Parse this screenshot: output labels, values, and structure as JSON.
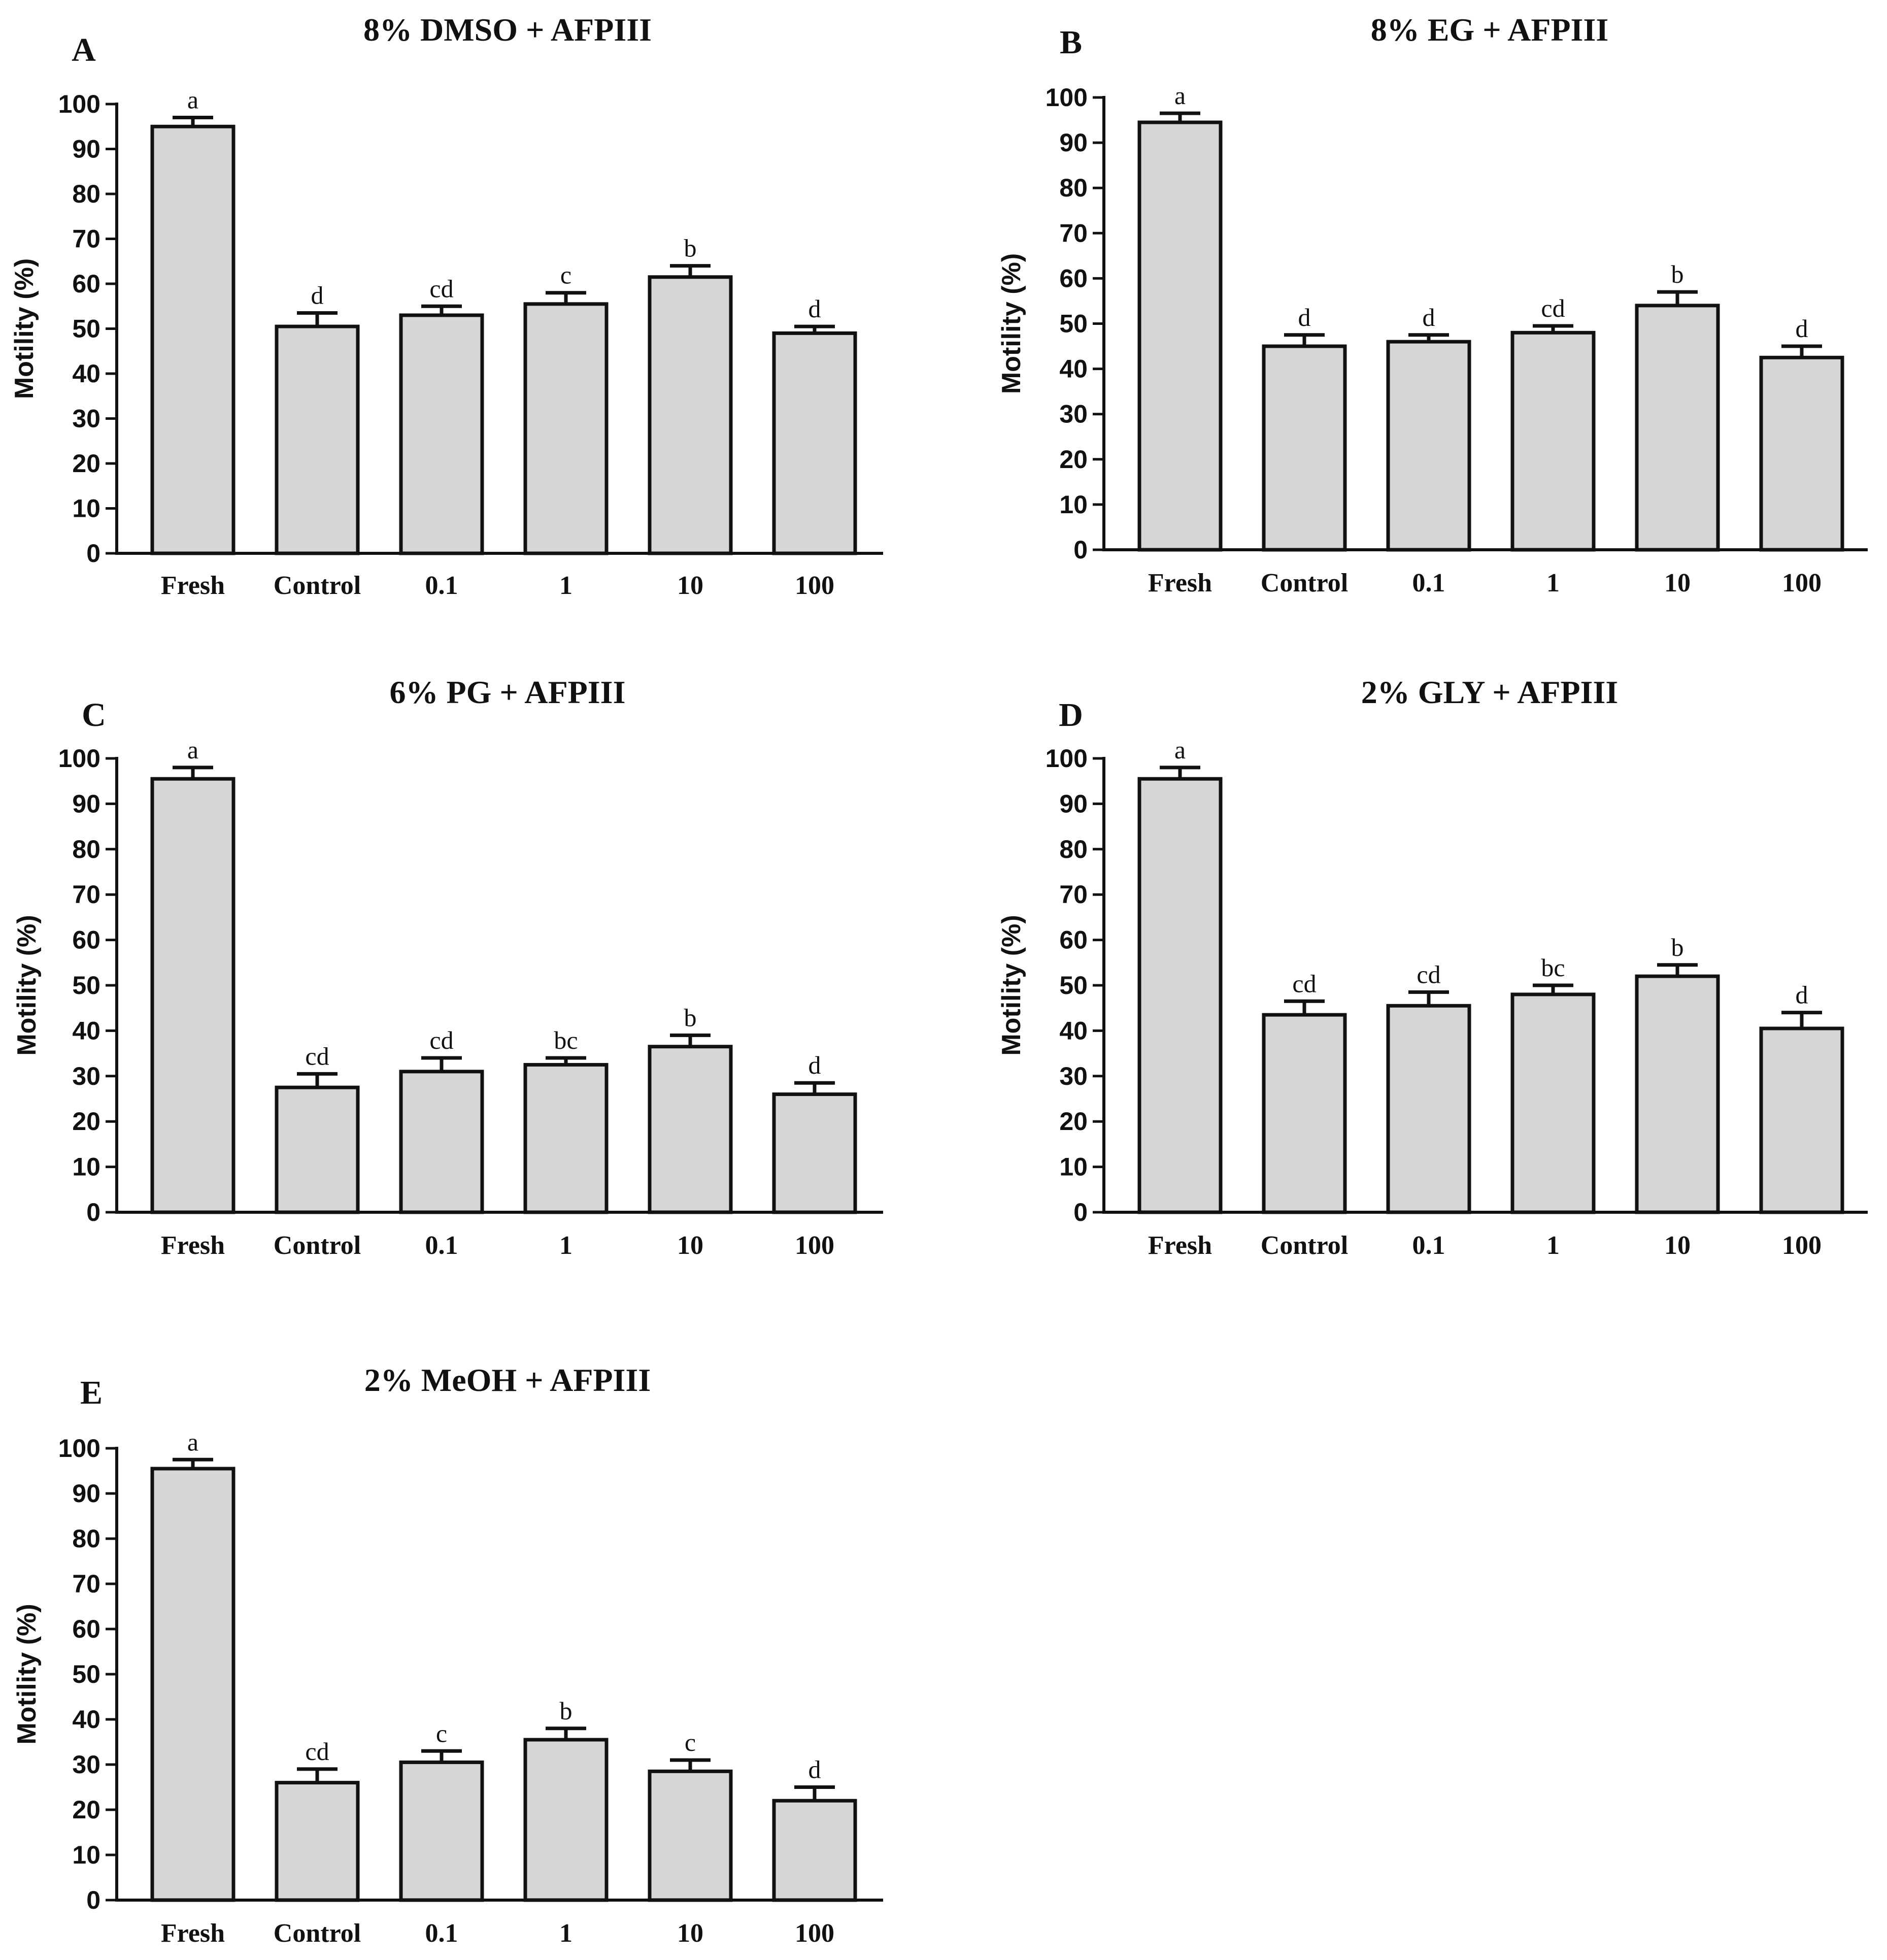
{
  "chart_data": [
    {
      "type": "bar",
      "panel": "A",
      "title": "8% DMSO + AFPIII",
      "ylabel": "Motility (%)",
      "xlabel": "",
      "ylim": [
        0,
        100
      ],
      "yticks": [
        0,
        10,
        20,
        30,
        40,
        50,
        60,
        70,
        80,
        90,
        100
      ],
      "categories": [
        "Fresh",
        "Control",
        "0.1",
        "1",
        "10",
        "100"
      ],
      "values": [
        95,
        50.5,
        53,
        55.5,
        61.5,
        49
      ],
      "errors": [
        2,
        3,
        2,
        2.5,
        2.5,
        1.5
      ],
      "significance": [
        "a",
        "d",
        "cd",
        "c",
        "b",
        "d"
      ]
    },
    {
      "type": "bar",
      "panel": "B",
      "title": "8% EG + AFPIII",
      "ylabel": "Motility (%)",
      "xlabel": "",
      "ylim": [
        0,
        100
      ],
      "yticks": [
        0,
        10,
        20,
        30,
        40,
        50,
        60,
        70,
        80,
        90,
        100
      ],
      "categories": [
        "Fresh",
        "Control",
        "0.1",
        "1",
        "10",
        "100"
      ],
      "values": [
        94.5,
        45,
        46,
        48,
        54,
        42.5
      ],
      "errors": [
        2,
        2.5,
        1.5,
        1.5,
        3,
        2.5
      ],
      "significance": [
        "a",
        "d",
        "d",
        "cd",
        "b",
        "d"
      ]
    },
    {
      "type": "bar",
      "panel": "C",
      "title": "6% PG + AFPIII",
      "ylabel": "Motility (%)",
      "xlabel": "",
      "ylim": [
        0,
        100
      ],
      "yticks": [
        0,
        10,
        20,
        30,
        40,
        50,
        60,
        70,
        80,
        90,
        100
      ],
      "categories": [
        "Fresh",
        "Control",
        "0.1",
        "1",
        "10",
        "100"
      ],
      "values": [
        95.5,
        27.5,
        31,
        32.5,
        36.5,
        26
      ],
      "errors": [
        2.5,
        3,
        3,
        1.5,
        2.5,
        2.5
      ],
      "significance": [
        "a",
        "cd",
        "cd",
        "bc",
        "b",
        "d"
      ]
    },
    {
      "type": "bar",
      "panel": "D",
      "title": "2% GLY + AFPIII",
      "ylabel": "Motility (%)",
      "xlabel": "",
      "ylim": [
        0,
        100
      ],
      "yticks": [
        0,
        10,
        20,
        30,
        40,
        50,
        60,
        70,
        80,
        90,
        100
      ],
      "categories": [
        "Fresh",
        "Control",
        "0.1",
        "1",
        "10",
        "100"
      ],
      "values": [
        95.5,
        43.5,
        45.5,
        48,
        52,
        40.5
      ],
      "errors": [
        2.5,
        3,
        3,
        2,
        2.5,
        3.5
      ],
      "significance": [
        "a",
        "cd",
        "cd",
        "bc",
        "b",
        "d"
      ]
    },
    {
      "type": "bar",
      "panel": "E",
      "title": "2% MeOH + AFPIII",
      "ylabel": "Motility (%)",
      "xlabel": "",
      "ylim": [
        0,
        100
      ],
      "yticks": [
        0,
        10,
        20,
        30,
        40,
        50,
        60,
        70,
        80,
        90,
        100
      ],
      "categories": [
        "Fresh",
        "Control",
        "0.1",
        "1",
        "10",
        "100"
      ],
      "values": [
        95.5,
        26,
        30.5,
        35.5,
        28.5,
        22
      ],
      "errors": [
        2,
        3,
        2.5,
        2.5,
        2.5,
        3
      ],
      "significance": [
        "a",
        "cd",
        "c",
        "b",
        "c",
        "d"
      ]
    }
  ],
  "colors": {
    "bar_fill": "#d6d6d6",
    "bar_stroke": "#111111",
    "background": "#ffffff"
  }
}
